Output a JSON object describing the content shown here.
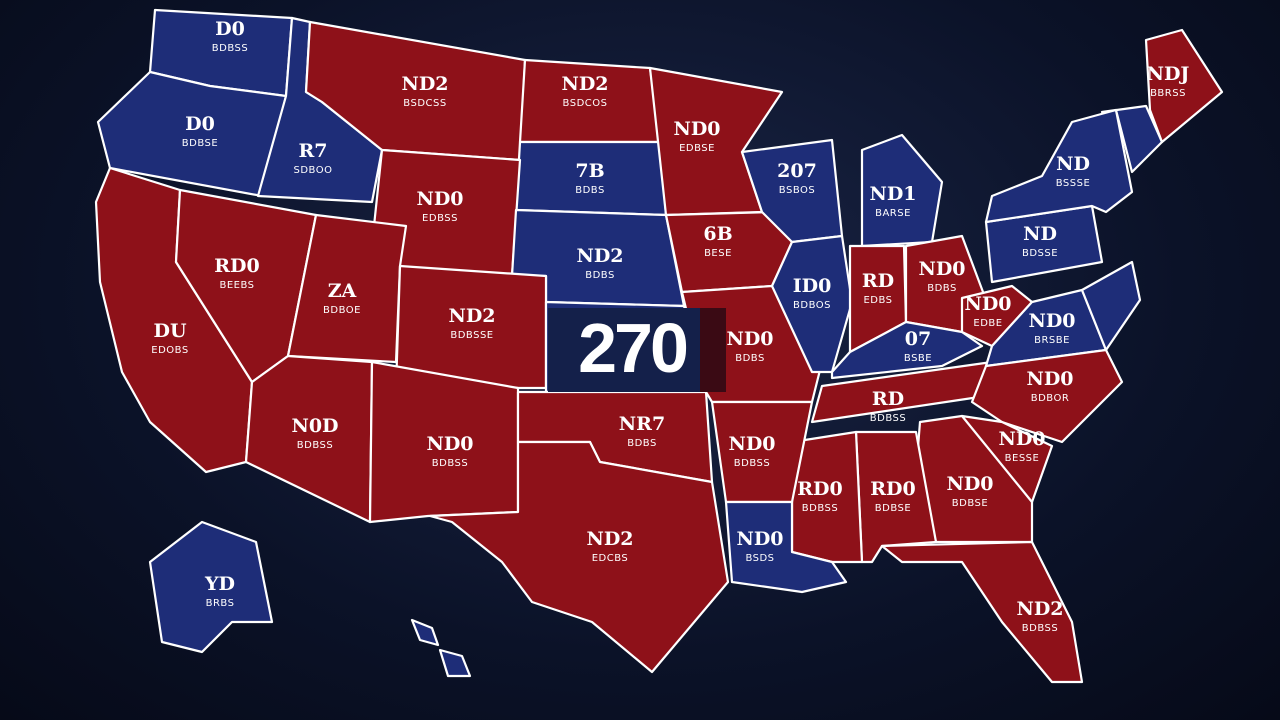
{
  "map": {
    "highlight": "270",
    "states": [
      {
        "label": "D0",
        "sublabel": "BDBSS"
      },
      {
        "label": "D0",
        "sublabel": "BDBSE"
      },
      {
        "label": "R7",
        "sublabel": "SDBOO"
      },
      {
        "label": "ND2",
        "sublabel": "BSDCSS"
      },
      {
        "label": "ND2",
        "sublabel": "BSDCOS"
      },
      {
        "label": "ND0",
        "sublabel": "EDBSE"
      },
      {
        "label": "7B",
        "sublabel": "BDBS"
      },
      {
        "label": "ND0",
        "sublabel": "EDBSS"
      },
      {
        "label": "ND2",
        "sublabel": "BDBS"
      },
      {
        "label": "6B",
        "sublabel": "BESE"
      },
      {
        "label": "207",
        "sublabel": "BSBOS"
      },
      {
        "label": "ND1",
        "sublabel": "BARSE"
      },
      {
        "label": "RD0",
        "sublabel": "BEEBS"
      },
      {
        "label": "ZA",
        "sublabel": "BDBOE"
      },
      {
        "label": "ND2",
        "sublabel": "BDBSSE"
      },
      {
        "label": "DU",
        "sublabel": "EDOBS"
      },
      {
        "label": "ND0",
        "sublabel": "BDBS"
      },
      {
        "label": "ID0",
        "sublabel": "BDBOS"
      },
      {
        "label": "RD",
        "sublabel": "EDBS"
      },
      {
        "label": "ND0",
        "sublabel": "BDBS"
      },
      {
        "label": "ND0",
        "sublabel": "EDBE"
      },
      {
        "label": "ND0",
        "sublabel": "BRSBE"
      },
      {
        "label": "07",
        "sublabel": "BSBE"
      },
      {
        "label": "ND",
        "sublabel": "BSSSE"
      },
      {
        "label": "ND",
        "sublabel": "BDSSE"
      },
      {
        "label": "NDJ",
        "sublabel": "BBRSS"
      },
      {
        "label": "ND0",
        "sublabel": "BDBSS"
      },
      {
        "label": "N0D",
        "sublabel": "BDBSS"
      },
      {
        "label": "NR7",
        "sublabel": "BDBS"
      },
      {
        "label": "ND0",
        "sublabel": "BDBSS"
      },
      {
        "label": "RD",
        "sublabel": "BDBSS"
      },
      {
        "label": "ND0",
        "sublabel": "BDBOR"
      },
      {
        "label": "ND0",
        "sublabel": "BESSE"
      },
      {
        "label": "ND0",
        "sublabel": "BDBSE"
      },
      {
        "label": "RD0",
        "sublabel": "BDBSE"
      },
      {
        "label": "RD0",
        "sublabel": "BDBSS"
      },
      {
        "label": "ND2",
        "sublabel": "EDCBS"
      },
      {
        "label": "ND0",
        "sublabel": "BSDS"
      },
      {
        "label": "ND2",
        "sublabel": "BDBSS"
      },
      {
        "label": "YD",
        "sublabel": "BRBS"
      }
    ]
  }
}
